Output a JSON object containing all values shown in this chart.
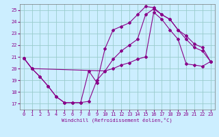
{
  "xlabel": "Windchill (Refroidissement éolien,°C)",
  "background_color": "#cceeff",
  "grid_color": "#99cccc",
  "line_color": "#880088",
  "xlim": [
    -0.5,
    23.5
  ],
  "ylim": [
    16.5,
    25.5
  ],
  "yticks": [
    17,
    18,
    19,
    20,
    21,
    22,
    23,
    24,
    25
  ],
  "xticks": [
    0,
    1,
    2,
    3,
    4,
    5,
    6,
    7,
    8,
    9,
    10,
    11,
    12,
    13,
    14,
    15,
    16,
    17,
    18,
    19,
    20,
    21,
    22,
    23
  ],
  "line1_x": [
    0,
    1,
    2,
    3,
    4,
    5,
    6,
    7,
    8,
    9,
    10,
    11,
    12,
    13,
    14,
    15,
    16,
    17,
    18,
    19,
    20,
    21,
    22,
    23
  ],
  "line1_y": [
    20.9,
    20.0,
    19.3,
    18.5,
    17.6,
    17.1,
    17.1,
    17.1,
    19.8,
    18.8,
    21.7,
    23.3,
    23.6,
    23.9,
    24.6,
    25.3,
    25.2,
    24.6,
    24.2,
    23.3,
    22.8,
    22.1,
    21.8,
    20.6
  ],
  "line2_x": [
    0,
    1,
    2,
    3,
    4,
    5,
    6,
    7,
    8,
    9,
    10,
    11,
    12,
    13,
    14,
    15,
    16,
    17,
    18,
    19,
    20,
    21,
    22,
    23
  ],
  "line2_y": [
    20.9,
    20.0,
    19.3,
    18.5,
    17.6,
    17.1,
    17.1,
    17.1,
    17.2,
    19.0,
    19.8,
    20.0,
    20.3,
    20.5,
    20.8,
    21.0,
    24.8,
    24.2,
    23.3,
    22.5,
    20.4,
    20.3,
    20.2,
    20.6
  ],
  "line3_x": [
    0,
    1,
    10,
    11,
    12,
    13,
    14,
    15,
    16,
    17,
    18,
    19,
    20,
    21,
    22,
    23
  ],
  "line3_y": [
    20.9,
    20.0,
    19.8,
    20.8,
    21.5,
    22.0,
    22.5,
    24.6,
    25.1,
    24.6,
    24.2,
    23.3,
    22.5,
    21.8,
    21.5,
    20.6
  ]
}
